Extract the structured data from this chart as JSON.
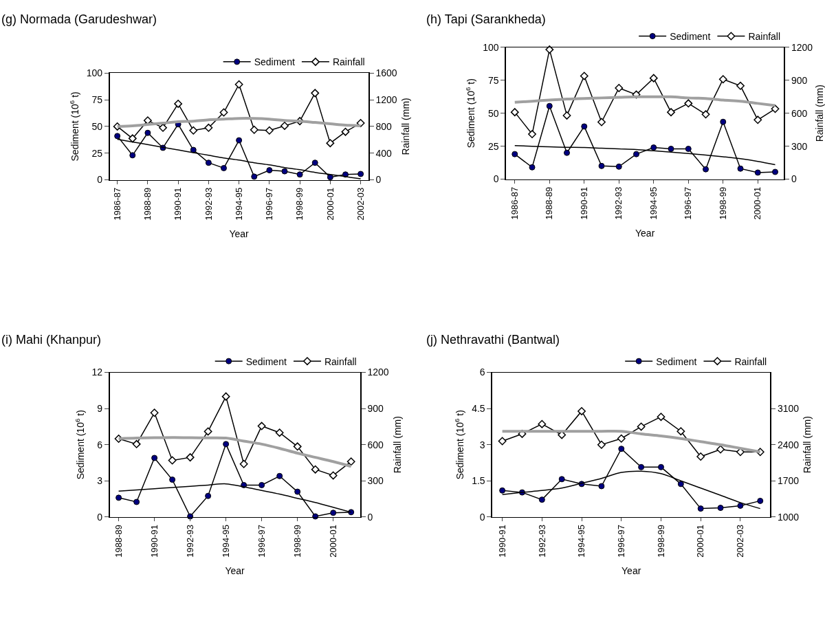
{
  "chart_data": [
    {
      "type": "line",
      "title": "(g) Normada (Garudeshwar)",
      "xlabel": "Year",
      "ylabel": "Sediment (10$^{6}$ t)",
      "y2label": "Rainfall (mm)",
      "categories": [
        "1986-87",
        null,
        "1988-89",
        null,
        "1990-91",
        null,
        "1992-93",
        null,
        "1994-95",
        null,
        "1996-97",
        null,
        "1998-99",
        null,
        "2000-01",
        null,
        "2002-03"
      ],
      "ylim": [
        0,
        100
      ],
      "yticks": [
        0,
        25,
        50,
        75,
        100
      ],
      "y2lim": [
        0,
        1600
      ],
      "y2ticks": [
        0,
        400,
        800,
        1200,
        1600
      ],
      "legend": "top right",
      "series": [
        {
          "name": "Sediment",
          "color": "#000080",
          "marker": "circle",
          "values": [
            41,
            23,
            44,
            30,
            52,
            28,
            16,
            11,
            37,
            3,
            9,
            8,
            5,
            16,
            2.5,
            5,
            5.5
          ]
        },
        {
          "name": "Rainfall",
          "color": "#000000",
          "marker": "diamond",
          "axis": "y2",
          "values": [
            800,
            620,
            890,
            780,
            1140,
            740,
            780,
            1010,
            1430,
            750,
            740,
            810,
            880,
            1300,
            550,
            720,
            850
          ]
        },
        {
          "color": "#000000",
          "marker": "none",
          "values": [
            38,
            35.5,
            33,
            30.5,
            28,
            25.5,
            23,
            20.5,
            18.5,
            16,
            14,
            11.5,
            9.5,
            7,
            5,
            3,
            1
          ]
        },
        {
          "color": "#a0a0a0",
          "marker": "none",
          "axis": "y2",
          "values": [
            800,
            810,
            830,
            850,
            870,
            880,
            900,
            910,
            920,
            920,
            910,
            890,
            880,
            860,
            840,
            820,
            810
          ]
        }
      ]
    },
    {
      "type": "line",
      "title": "(h) Tapi (Sarankheda)",
      "xlabel": "Year",
      "ylabel": "Sediment (10$^{6}$ t)",
      "y2label": "Rainfall (mm)",
      "categories": [
        "1986-87",
        null,
        "1988-89",
        null,
        "1990-91",
        null,
        "1992-93",
        null,
        "1994-95",
        null,
        "1996-97",
        null,
        "1998-99",
        null,
        "2000-01",
        null
      ],
      "ylim": [
        0,
        100
      ],
      "yticks": [
        0,
        25,
        50,
        75,
        100
      ],
      "y2lim": [
        0,
        1200
      ],
      "y2ticks": [
        0,
        300,
        600,
        900,
        1200
      ],
      "legend": "top right",
      "series": [
        {
          "name": "Sediment",
          "color": "#000080",
          "marker": "circle",
          "values": [
            19,
            9,
            55.5,
            20,
            40,
            10,
            9.5,
            19,
            24,
            23,
            23,
            7.5,
            43.5,
            8,
            5,
            5.5
          ]
        },
        {
          "name": "Rainfall",
          "color": "#000000",
          "marker": "diamond",
          "axis": "y2",
          "values": [
            610,
            410,
            1180,
            580,
            940,
            520,
            830,
            770,
            920,
            610,
            690,
            590,
            910,
            850,
            540,
            640
          ]
        },
        {
          "color": "#000000",
          "marker": "none",
          "values": [
            25.5,
            25,
            24.5,
            24.2,
            24,
            23.5,
            23,
            22.5,
            21.5,
            20.5,
            19.5,
            18.3,
            17,
            15.5,
            13.5,
            11
          ]
        },
        {
          "color": "#a0a0a0",
          "marker": "none",
          "axis": "y2",
          "values": [
            700,
            710,
            720,
            730,
            735,
            740,
            745,
            750,
            750,
            750,
            740,
            735,
            720,
            710,
            690,
            670
          ]
        }
      ]
    },
    {
      "type": "line",
      "title": "(i) Mahi (Khanpur)",
      "xlabel": "Year",
      "ylabel": "Sediment (10$^{6}$ t)",
      "y2label": "Rainfall (mm)",
      "categories": [
        "1988-89",
        null,
        "1990-91",
        null,
        "1992-93",
        null,
        "1994-95",
        null,
        "1996-97",
        null,
        "1998-99",
        null,
        "2000-01",
        null
      ],
      "ylim": [
        0,
        12
      ],
      "yticks": [
        0,
        3,
        6,
        9,
        12
      ],
      "y2lim": [
        0,
        1200
      ],
      "y2ticks": [
        0,
        300,
        600,
        900,
        1200
      ],
      "legend": "top right",
      "series": [
        {
          "name": "Sediment",
          "color": "#000080",
          "marker": "circle",
          "values": [
            1.6,
            1.25,
            4.9,
            3.1,
            0.05,
            1.75,
            6.05,
            2.65,
            2.65,
            3.4,
            2.1,
            0.05,
            0.35,
            0.4
          ]
        },
        {
          "name": "Rainfall",
          "color": "#000000",
          "marker": "diamond",
          "axis": "y2",
          "values": [
            650,
            605,
            865,
            470,
            495,
            710,
            1000,
            440,
            755,
            700,
            585,
            395,
            345,
            460
          ]
        },
        {
          "color": "#000000",
          "marker": "none",
          "values": [
            2.15,
            2.25,
            2.35,
            2.45,
            2.55,
            2.65,
            2.75,
            2.5,
            2.2,
            1.9,
            1.55,
            1.2,
            0.8,
            0.4
          ]
        },
        {
          "color": "#a0a0a0",
          "marker": "none",
          "axis": "y2",
          "values": [
            650,
            655,
            658,
            660,
            658,
            657,
            655,
            630,
            605,
            570,
            530,
            495,
            460,
            420
          ]
        }
      ]
    },
    {
      "type": "line",
      "title": "(j) Nethravathi (Bantwal)",
      "xlabel": "Year",
      "ylabel": "Sediment (10$^{6}$ t)",
      "y2label": "Rainfall (mm)",
      "categories": [
        "1990-91",
        null,
        "1992-93",
        null,
        "1994-95",
        null,
        "1996-97",
        null,
        "1998-99",
        null,
        "2000-01",
        null,
        "2002-03",
        null
      ],
      "ylim": [
        0,
        6
      ],
      "yticks": [
        0,
        1.5,
        3,
        4.5,
        6
      ],
      "y2lim": [
        1000,
        3800
      ],
      "y2ticks": [
        1000,
        1700,
        2400,
        3100
      ],
      "legend": "top right",
      "series": [
        {
          "name": "Sediment",
          "color": "#000080",
          "marker": "circle",
          "values": [
            1.1,
            1.02,
            0.72,
            1.57,
            1.37,
            1.28,
            2.83,
            2.07,
            2.07,
            1.37,
            0.35,
            0.38,
            0.47,
            0.67
          ]
        },
        {
          "name": "Rainfall",
          "color": "#000000",
          "marker": "diamond",
          "axis": "y2",
          "values": [
            2470,
            2610,
            2800,
            2590,
            3050,
            2400,
            2520,
            2750,
            2940,
            2660,
            2170,
            2310,
            2260,
            2260
          ]
        },
        {
          "color": "#000000",
          "marker": "none",
          "values": [
            0.93,
            1.02,
            1.1,
            1.2,
            1.4,
            1.6,
            1.85,
            1.9,
            1.8,
            1.5,
            1.2,
            0.9,
            0.6,
            0.35
          ]
        },
        {
          "color": "#a0a0a0",
          "marker": "none",
          "axis": "y2",
          "values": [
            2660,
            2660,
            2660,
            2660,
            2660,
            2660,
            2660,
            2610,
            2570,
            2520,
            2460,
            2400,
            2330,
            2260
          ]
        }
      ]
    }
  ]
}
